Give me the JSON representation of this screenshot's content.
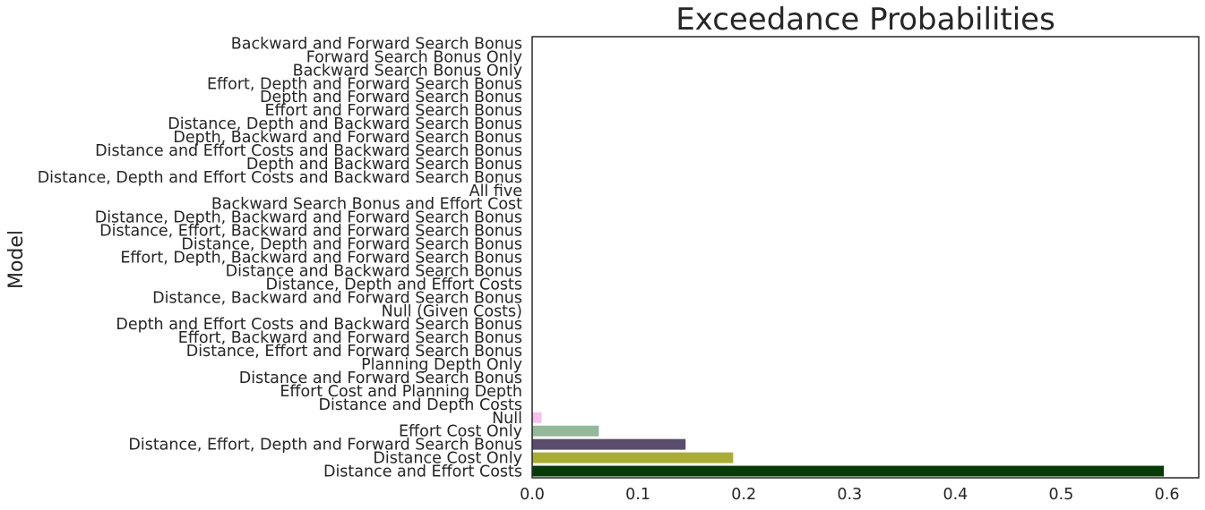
{
  "chart_data": {
    "type": "bar",
    "orientation": "horizontal",
    "title": "Exceedance Probabilities",
    "xlabel": "",
    "ylabel": "Model",
    "xlim": [
      0,
      0.63
    ],
    "xticks": [
      "0.0",
      "0.1",
      "0.2",
      "0.3",
      "0.4",
      "0.5",
      "0.6"
    ],
    "grid": false,
    "legend": "none",
    "categories": [
      "Backward and Forward Search Bonus",
      "Forward Search Bonus Only",
      "Backward Search Bonus Only",
      "Effort, Depth and Forward Search Bonus",
      "Depth and Forward Search Bonus",
      "Effort and Forward Search Bonus",
      "Distance, Depth and Backward Search Bonus",
      "Depth, Backward and Forward Search Bonus",
      "Distance and Effort Costs and Backward Search Bonus",
      "Depth and Backward Search Bonus",
      "Distance, Depth and Effort Costs and Backward Search Bonus",
      "All five",
      "Backward Search Bonus and Effort Cost",
      "Distance, Depth, Backward and Forward Search Bonus",
      "Distance, Effort, Backward and Forward Search Bonus",
      "Distance, Depth and Forward Search Bonus",
      "Effort, Depth, Backward and Forward Search Bonus",
      "Distance and Backward Search Bonus",
      "Distance, Depth and Effort Costs",
      "Distance, Backward and Forward Search Bonus",
      "Null (Given Costs)",
      "Depth and Effort Costs and Backward Search Bonus",
      "Effort, Backward and Forward Search Bonus",
      "Distance, Effort and Forward Search Bonus",
      "Planning Depth Only",
      "Distance and Forward Search Bonus",
      "Effort Cost and Planning Depth",
      "Distance and Depth Costs",
      "Null",
      "Effort Cost Only",
      "Distance, Effort, Depth and Forward Search Bonus",
      "Distance Cost Only",
      "Distance and Effort Costs"
    ],
    "values": [
      0,
      0,
      0,
      0,
      0,
      0,
      0,
      0,
      0,
      0,
      0,
      0,
      0,
      0,
      0,
      0,
      0,
      0,
      0,
      0,
      0,
      0,
      0,
      0,
      0,
      0,
      0,
      0,
      0.009,
      0.063,
      0.145,
      0.19,
      0.597
    ],
    "colors": [
      "#ffffff",
      "#ffffff",
      "#ffffff",
      "#ffffff",
      "#ffffff",
      "#ffffff",
      "#ffffff",
      "#ffffff",
      "#ffffff",
      "#ffffff",
      "#ffffff",
      "#ffffff",
      "#ffffff",
      "#ffffff",
      "#ffffff",
      "#ffffff",
      "#ffffff",
      "#ffffff",
      "#ffffff",
      "#ffffff",
      "#ffffff",
      "#ffffff",
      "#ffffff",
      "#ffffff",
      "#ffffff",
      "#ffffff",
      "#ffffff",
      "#ffffff",
      "#f5c2ee",
      "#93b89a",
      "#5a4c6c",
      "#a9ad36",
      "#063a07"
    ]
  }
}
